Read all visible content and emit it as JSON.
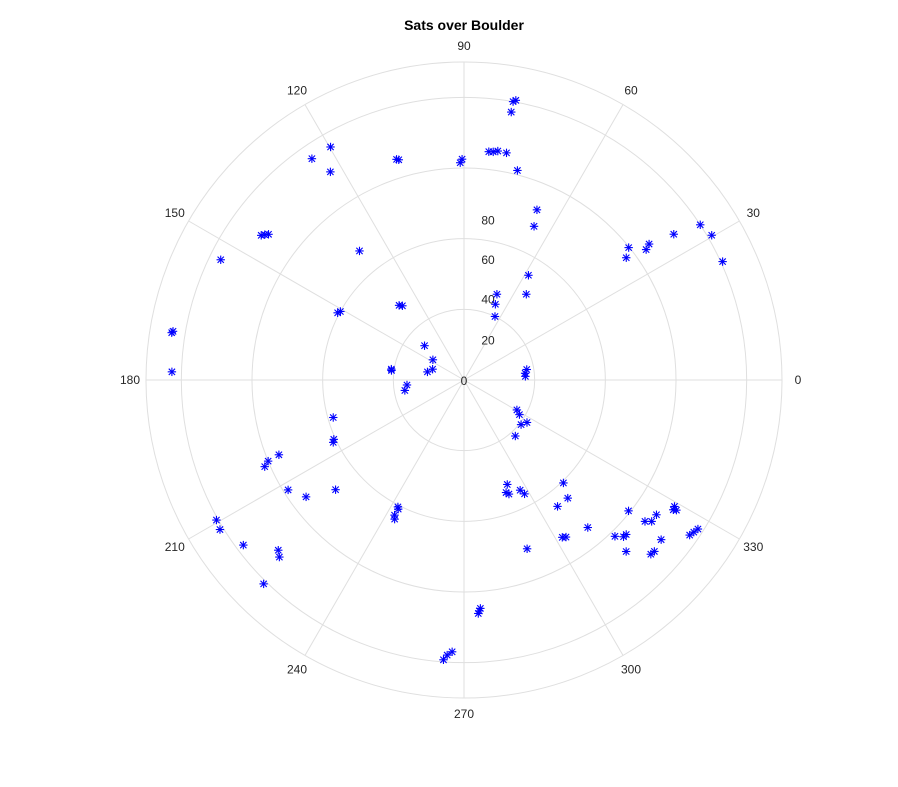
{
  "chart_data": {
    "type": "scatter",
    "subtype": "polar",
    "title": "Sats over Boulder",
    "theta_unit": "degrees",
    "theta_ticks": [
      0,
      30,
      60,
      90,
      120,
      150,
      180,
      210,
      240,
      270,
      300,
      330
    ],
    "theta_tick_labels": [
      "0",
      "30",
      "60",
      "90",
      "120",
      "150",
      "180",
      "210",
      "240",
      "270",
      "300",
      "330"
    ],
    "r_ticks": [
      0,
      20,
      40,
      60,
      80
    ],
    "r_tick_labels": [
      "0",
      "20",
      "40",
      "60",
      "80"
    ],
    "rlim": [
      0,
      90
    ],
    "grid": true,
    "marker": "*",
    "marker_color": "#0000ff",
    "grid_color": "#dfdfdf",
    "points": [
      {
        "theta": 79.5,
        "r": 80.5
      },
      {
        "theta": 80.0,
        "r": 80.0
      },
      {
        "theta": 80.0,
        "r": 77.0
      },
      {
        "theta": 83.8,
        "r": 65.0
      },
      {
        "theta": 82.7,
        "r": 65.1
      },
      {
        "theta": 81.6,
        "r": 65.5
      },
      {
        "theta": 79.4,
        "r": 65.4
      },
      {
        "theta": 75.7,
        "r": 61.2
      },
      {
        "theta": 66.8,
        "r": 52.4
      },
      {
        "theta": 65.5,
        "r": 47.8
      },
      {
        "theta": 58.4,
        "r": 34.8
      },
      {
        "theta": 54.0,
        "r": 30.0
      },
      {
        "theta": 69.0,
        "r": 26.0
      },
      {
        "theta": 67.5,
        "r": 23.2
      },
      {
        "theta": 64.0,
        "r": 20.0
      },
      {
        "theta": 38.8,
        "r": 59.8
      },
      {
        "theta": 37.0,
        "r": 57.5
      },
      {
        "theta": 35.6,
        "r": 63.4
      },
      {
        "theta": 36.3,
        "r": 65.0
      },
      {
        "theta": 34.8,
        "r": 72.3
      },
      {
        "theta": 33.3,
        "r": 80.0
      },
      {
        "theta": 30.3,
        "r": 81.2
      },
      {
        "theta": 24.6,
        "r": 80.5
      },
      {
        "theta": 9.5,
        "r": 18.0
      },
      {
        "theta": 6.3,
        "r": 17.4
      },
      {
        "theta": 3.4,
        "r": 17.4
      },
      {
        "theta": 90.5,
        "r": 62.5
      },
      {
        "theta": 91.0,
        "r": 61.5
      },
      {
        "theta": 107.0,
        "r": 65.3
      },
      {
        "theta": 106.5,
        "r": 65.0
      },
      {
        "theta": 119.8,
        "r": 76.0
      },
      {
        "theta": 124.5,
        "r": 76.0
      },
      {
        "theta": 122.7,
        "r": 70.0
      },
      {
        "theta": 129.0,
        "r": 47.0
      },
      {
        "theta": 131.0,
        "r": 28.0
      },
      {
        "theta": 129.7,
        "r": 27.3
      },
      {
        "theta": 139.0,
        "r": 14.8
      },
      {
        "theta": 147.0,
        "r": 10.5
      },
      {
        "theta": 161.0,
        "r": 9.4
      },
      {
        "theta": 167.5,
        "r": 10.6
      },
      {
        "theta": 143.3,
        "r": 69.0
      },
      {
        "theta": 143.9,
        "r": 69.8
      },
      {
        "theta": 144.5,
        "r": 70.5
      },
      {
        "theta": 153.7,
        "r": 76.8
      },
      {
        "theta": 170.5,
        "r": 83.5
      },
      {
        "theta": 170.8,
        "r": 83.8
      },
      {
        "theta": 178.4,
        "r": 82.7
      },
      {
        "theta": 151.0,
        "r": 40.0
      },
      {
        "theta": 152.0,
        "r": 40.5
      },
      {
        "theta": 171.5,
        "r": 20.8
      },
      {
        "theta": 172.5,
        "r": 20.7
      },
      {
        "theta": 185.0,
        "r": 16.2
      },
      {
        "theta": 190.0,
        "r": 17.0
      },
      {
        "theta": 196.0,
        "r": 38.5
      },
      {
        "theta": 204.5,
        "r": 40.5
      },
      {
        "theta": 205.5,
        "r": 41.0
      },
      {
        "theta": 202.5,
        "r": 60.0
      },
      {
        "theta": 203.5,
        "r": 61.5
      },
      {
        "theta": 202.0,
        "r": 56.5
      },
      {
        "theta": 212.0,
        "r": 58.7
      },
      {
        "theta": 216.5,
        "r": 55.6
      },
      {
        "theta": 220.5,
        "r": 47.8
      },
      {
        "theta": 209.5,
        "r": 80.5
      },
      {
        "theta": 211.5,
        "r": 81.0
      },
      {
        "theta": 216.8,
        "r": 78.0
      },
      {
        "theta": 225.5,
        "r": 80.9
      },
      {
        "theta": 222.5,
        "r": 71.3
      },
      {
        "theta": 223.8,
        "r": 72.4
      },
      {
        "theta": 242.5,
        "r": 40.5
      },
      {
        "theta": 243.0,
        "r": 41.0
      },
      {
        "theta": 242.8,
        "r": 43.0
      },
      {
        "theta": 243.5,
        "r": 44.0
      },
      {
        "theta": 265.8,
        "r": 79.4
      },
      {
        "theta": 266.5,
        "r": 78.0
      },
      {
        "theta": 267.5,
        "r": 77.0
      },
      {
        "theta": 273.5,
        "r": 66.2
      },
      {
        "theta": 273.8,
        "r": 65.5
      },
      {
        "theta": 274.1,
        "r": 64.8
      },
      {
        "theta": 290.5,
        "r": 34.0
      },
      {
        "theta": 291.5,
        "r": 34.7
      },
      {
        "theta": 292.5,
        "r": 32.0
      },
      {
        "theta": 306.5,
        "r": 44.5
      },
      {
        "theta": 311.3,
        "r": 44.5
      },
      {
        "theta": 314.0,
        "r": 40.5
      },
      {
        "theta": 290.5,
        "r": 51.0
      },
      {
        "theta": 302.0,
        "r": 52.5
      },
      {
        "theta": 303.0,
        "r": 53.0
      },
      {
        "theta": 321.5,
        "r": 59.5
      },
      {
        "theta": 310.0,
        "r": 54.5
      },
      {
        "theta": 314.0,
        "r": 61.5
      },
      {
        "theta": 315.5,
        "r": 63.3
      },
      {
        "theta": 316.4,
        "r": 63.4
      },
      {
        "theta": 313.4,
        "r": 66.8
      },
      {
        "theta": 329.0,
        "r": 69.5
      },
      {
        "theta": 328.5,
        "r": 70.5
      },
      {
        "theta": 328.2,
        "r": 69.7
      },
      {
        "theta": 321.0,
        "r": 71.8
      },
      {
        "theta": 318.0,
        "r": 72.5
      },
      {
        "theta": 317.0,
        "r": 72.3
      },
      {
        "theta": 325.0,
        "r": 66.5
      },
      {
        "theta": 323.0,
        "r": 66.5
      },
      {
        "theta": 322.0,
        "r": 65.0
      },
      {
        "theta": 326.5,
        "r": 78.0
      },
      {
        "theta": 327.5,
        "r": 78.5
      },
      {
        "theta": 325.5,
        "r": 77.5
      },
      {
        "theta": 298.0,
        "r": 36.5
      },
      {
        "theta": 297.0,
        "r": 35.0
      },
      {
        "theta": 312.5,
        "r": 21.5
      },
      {
        "theta": 326.0,
        "r": 21.5
      },
      {
        "theta": 322.0,
        "r": 20.5
      },
      {
        "theta": 328.0,
        "r": 18.5
      },
      {
        "theta": 330.5,
        "r": 17.2
      }
    ]
  }
}
